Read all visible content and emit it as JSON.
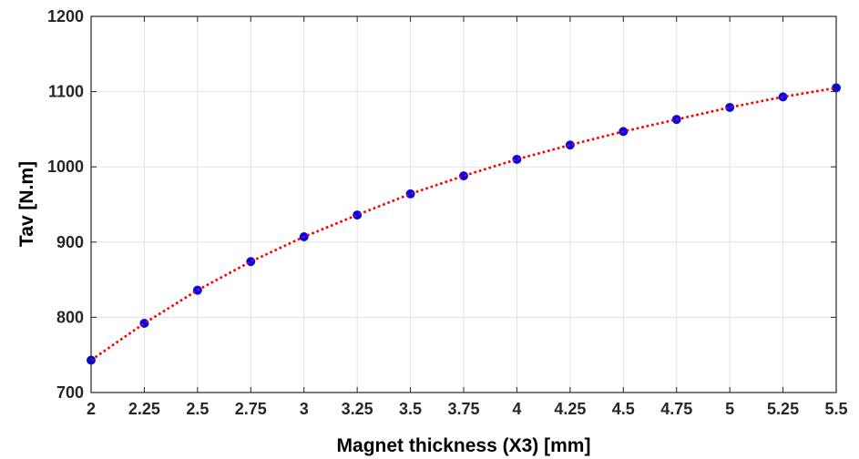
{
  "chart_data": {
    "type": "line",
    "xlabel": "Magnet thickness (X3) [mm]",
    "ylabel": "Tav [N.m]",
    "xlim": [
      2,
      5.5
    ],
    "ylim": [
      700,
      1200
    ],
    "x_ticks": [
      "2",
      "2.25",
      "2.5",
      "2.75",
      "3",
      "3.25",
      "3.5",
      "3.75",
      "4",
      "4.25",
      "4.5",
      "4.75",
      "5",
      "5.25",
      "5.5"
    ],
    "y_ticks": [
      "700",
      "800",
      "900",
      "1000",
      "1100",
      "1200"
    ],
    "grid": true,
    "series": [
      {
        "x": [
          2,
          2.25,
          2.5,
          2.75,
          3,
          3.25,
          3.5,
          3.75,
          4,
          4.25,
          4.5,
          4.75,
          5,
          5.25,
          5.5
        ],
        "y": [
          743,
          792,
          836,
          874,
          907,
          936,
          964,
          988,
          1010,
          1029,
          1047,
          1063,
          1079,
          1093,
          1105
        ],
        "line_color": "#ff0000",
        "line_style": "dotted",
        "marker_color": "#0000ff",
        "marker": "circle"
      }
    ]
  }
}
